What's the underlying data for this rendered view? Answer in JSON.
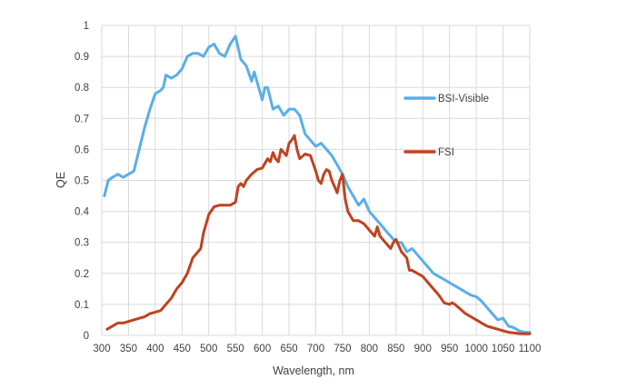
{
  "chart_data": {
    "type": "line",
    "title": "",
    "xlabel": "Wavelength, nm",
    "ylabel": "QE",
    "xlim": [
      300,
      1100
    ],
    "ylim": [
      0,
      1
    ],
    "x_ticks": [
      300,
      350,
      400,
      450,
      500,
      550,
      600,
      650,
      700,
      750,
      800,
      850,
      900,
      950,
      1000,
      1050,
      1100
    ],
    "y_ticks": [
      0,
      0.1,
      0.2,
      0.3,
      0.4,
      0.5,
      0.6,
      0.7,
      0.8,
      0.9,
      1
    ],
    "y_tick_labels": [
      "0",
      "0.1",
      "0.2",
      "0.3",
      "0.4",
      "0.5",
      "0.6",
      "0.7",
      "0.8",
      "0.9",
      "1"
    ],
    "grid": true,
    "legend_position": "right",
    "series": [
      {
        "name": "BSI-Visible",
        "color": "#5aaee8",
        "points": [
          [
            305,
            0.45
          ],
          [
            312,
            0.5
          ],
          [
            320,
            0.51
          ],
          [
            330,
            0.52
          ],
          [
            340,
            0.51
          ],
          [
            350,
            0.52
          ],
          [
            360,
            0.53
          ],
          [
            370,
            0.6
          ],
          [
            380,
            0.67
          ],
          [
            390,
            0.73
          ],
          [
            400,
            0.78
          ],
          [
            410,
            0.79
          ],
          [
            415,
            0.8
          ],
          [
            420,
            0.84
          ],
          [
            430,
            0.83
          ],
          [
            440,
            0.84
          ],
          [
            450,
            0.86
          ],
          [
            460,
            0.9
          ],
          [
            470,
            0.91
          ],
          [
            480,
            0.91
          ],
          [
            490,
            0.9
          ],
          [
            500,
            0.93
          ],
          [
            510,
            0.94
          ],
          [
            520,
            0.91
          ],
          [
            530,
            0.9
          ],
          [
            540,
            0.94
          ],
          [
            550,
            0.965
          ],
          [
            560,
            0.89
          ],
          [
            570,
            0.87
          ],
          [
            580,
            0.82
          ],
          [
            585,
            0.85
          ],
          [
            590,
            0.82
          ],
          [
            600,
            0.76
          ],
          [
            605,
            0.8
          ],
          [
            610,
            0.8
          ],
          [
            620,
            0.73
          ],
          [
            630,
            0.74
          ],
          [
            640,
            0.71
          ],
          [
            650,
            0.73
          ],
          [
            660,
            0.73
          ],
          [
            670,
            0.71
          ],
          [
            680,
            0.65
          ],
          [
            690,
            0.63
          ],
          [
            700,
            0.61
          ],
          [
            710,
            0.62
          ],
          [
            720,
            0.6
          ],
          [
            730,
            0.58
          ],
          [
            740,
            0.55
          ],
          [
            750,
            0.52
          ],
          [
            760,
            0.48
          ],
          [
            770,
            0.45
          ],
          [
            780,
            0.42
          ],
          [
            790,
            0.44
          ],
          [
            800,
            0.4
          ],
          [
            810,
            0.38
          ],
          [
            820,
            0.36
          ],
          [
            830,
            0.34
          ],
          [
            840,
            0.32
          ],
          [
            850,
            0.3
          ],
          [
            860,
            0.3
          ],
          [
            870,
            0.27
          ],
          [
            880,
            0.28
          ],
          [
            890,
            0.26
          ],
          [
            900,
            0.24
          ],
          [
            910,
            0.22
          ],
          [
            920,
            0.2
          ],
          [
            930,
            0.19
          ],
          [
            940,
            0.18
          ],
          [
            950,
            0.17
          ],
          [
            960,
            0.16
          ],
          [
            970,
            0.15
          ],
          [
            980,
            0.14
          ],
          [
            990,
            0.13
          ],
          [
            1000,
            0.125
          ],
          [
            1010,
            0.11
          ],
          [
            1020,
            0.09
          ],
          [
            1030,
            0.07
          ],
          [
            1040,
            0.05
          ],
          [
            1050,
            0.055
          ],
          [
            1060,
            0.03
          ],
          [
            1070,
            0.025
          ],
          [
            1080,
            0.015
          ],
          [
            1090,
            0.01
          ],
          [
            1100,
            0.01
          ]
        ]
      },
      {
        "name": "FSI",
        "color": "#c0421f",
        "points": [
          [
            310,
            0.02
          ],
          [
            320,
            0.03
          ],
          [
            330,
            0.04
          ],
          [
            340,
            0.04
          ],
          [
            350,
            0.045
          ],
          [
            360,
            0.05
          ],
          [
            370,
            0.055
          ],
          [
            380,
            0.06
          ],
          [
            390,
            0.07
          ],
          [
            400,
            0.075
          ],
          [
            410,
            0.08
          ],
          [
            420,
            0.1
          ],
          [
            430,
            0.12
          ],
          [
            440,
            0.15
          ],
          [
            450,
            0.17
          ],
          [
            460,
            0.2
          ],
          [
            470,
            0.25
          ],
          [
            480,
            0.27
          ],
          [
            485,
            0.28
          ],
          [
            490,
            0.33
          ],
          [
            500,
            0.39
          ],
          [
            510,
            0.415
          ],
          [
            520,
            0.42
          ],
          [
            530,
            0.42
          ],
          [
            540,
            0.42
          ],
          [
            550,
            0.43
          ],
          [
            555,
            0.48
          ],
          [
            560,
            0.49
          ],
          [
            565,
            0.48
          ],
          [
            570,
            0.5
          ],
          [
            580,
            0.52
          ],
          [
            590,
            0.535
          ],
          [
            600,
            0.54
          ],
          [
            610,
            0.57
          ],
          [
            615,
            0.56
          ],
          [
            620,
            0.59
          ],
          [
            625,
            0.57
          ],
          [
            630,
            0.56
          ],
          [
            635,
            0.6
          ],
          [
            640,
            0.59
          ],
          [
            645,
            0.58
          ],
          [
            650,
            0.62
          ],
          [
            655,
            0.63
          ],
          [
            660,
            0.645
          ],
          [
            665,
            0.6
          ],
          [
            670,
            0.57
          ],
          [
            680,
            0.585
          ],
          [
            690,
            0.58
          ],
          [
            700,
            0.53
          ],
          [
            705,
            0.5
          ],
          [
            710,
            0.49
          ],
          [
            715,
            0.52
          ],
          [
            720,
            0.535
          ],
          [
            725,
            0.53
          ],
          [
            730,
            0.5
          ],
          [
            740,
            0.46
          ],
          [
            745,
            0.5
          ],
          [
            750,
            0.52
          ],
          [
            755,
            0.44
          ],
          [
            760,
            0.4
          ],
          [
            770,
            0.37
          ],
          [
            780,
            0.37
          ],
          [
            790,
            0.36
          ],
          [
            800,
            0.34
          ],
          [
            810,
            0.32
          ],
          [
            815,
            0.35
          ],
          [
            820,
            0.32
          ],
          [
            830,
            0.3
          ],
          [
            840,
            0.28
          ],
          [
            845,
            0.3
          ],
          [
            850,
            0.31
          ],
          [
            855,
            0.29
          ],
          [
            860,
            0.27
          ],
          [
            870,
            0.25
          ],
          [
            875,
            0.21
          ],
          [
            880,
            0.21
          ],
          [
            890,
            0.2
          ],
          [
            900,
            0.19
          ],
          [
            910,
            0.17
          ],
          [
            920,
            0.15
          ],
          [
            930,
            0.13
          ],
          [
            940,
            0.105
          ],
          [
            950,
            0.1
          ],
          [
            955,
            0.105
          ],
          [
            960,
            0.1
          ],
          [
            970,
            0.085
          ],
          [
            980,
            0.07
          ],
          [
            990,
            0.06
          ],
          [
            1000,
            0.05
          ],
          [
            1010,
            0.04
          ],
          [
            1020,
            0.03
          ],
          [
            1030,
            0.025
          ],
          [
            1040,
            0.02
          ],
          [
            1050,
            0.015
          ],
          [
            1060,
            0.01
          ],
          [
            1070,
            0.008
          ],
          [
            1080,
            0.006
          ],
          [
            1090,
            0.005
          ],
          [
            1100,
            0.005
          ]
        ]
      }
    ]
  }
}
